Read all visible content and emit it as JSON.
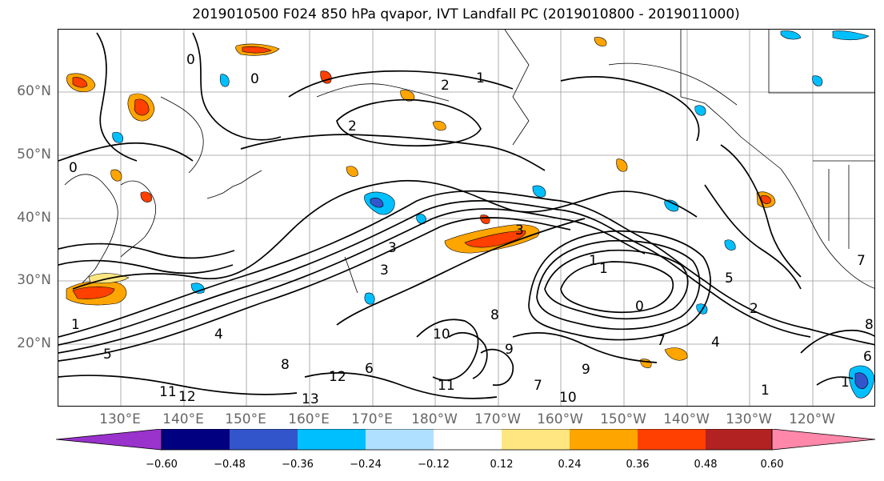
{
  "title": "2019010500 F024 850 hPa qvapor, IVT Landfall PC (2019010800 - 2019011000)",
  "lat_labels": [
    "60°N",
    "50°N",
    "40°N",
    "30°N",
    "20°N"
  ],
  "lon_labels": [
    "130°E",
    "140°E",
    "150°E",
    "160°E",
    "170°E",
    "180°W",
    "170°W",
    "160°W",
    "150°W",
    "140°W",
    "130°W",
    "120°W"
  ],
  "contour_labels": [
    "0",
    "2",
    "1",
    "0",
    "0",
    "3",
    "3",
    "2",
    "1",
    "0",
    "5",
    "3",
    "2",
    "4",
    "7",
    "1",
    "1",
    "10",
    "6",
    "11",
    "12",
    "13",
    "1",
    "8",
    "12",
    "11",
    "9",
    "9",
    "10",
    "8",
    "7",
    "5",
    "8",
    "1",
    "6",
    "7",
    "4"
  ],
  "colorbar": {
    "ticks": [
      "−0.60",
      "−0.48",
      "−0.36",
      "−0.24",
      "−0.12",
      "0.12",
      "0.24",
      "0.36",
      "0.48",
      "0.60"
    ],
    "colors": [
      "#9933cc",
      "#000080",
      "#3355cc",
      "#00bfff",
      "#b0e0ff",
      "#ffffff",
      "#ffe680",
      "#ffa500",
      "#ff4000",
      "#b22222",
      "#ff88aa"
    ]
  }
}
